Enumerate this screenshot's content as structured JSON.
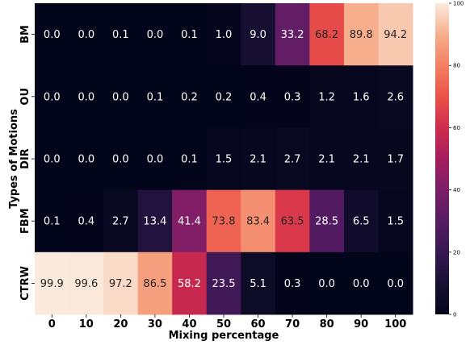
{
  "chart_data": {
    "type": "heatmap",
    "xlabel": "Mixing percentage",
    "ylabel": "Types of Motions",
    "x_categories": [
      "0",
      "10",
      "20",
      "30",
      "40",
      "50",
      "60",
      "70",
      "80",
      "90",
      "100"
    ],
    "y_categories": [
      "BM",
      "OU",
      "DIR",
      "FBM",
      "CTRW"
    ],
    "values": [
      [
        0.0,
        0.0,
        0.1,
        0.0,
        0.1,
        1.0,
        9.0,
        33.2,
        68.2,
        89.8,
        94.2
      ],
      [
        0.0,
        0.0,
        0.0,
        0.1,
        0.2,
        0.2,
        0.4,
        0.3,
        1.2,
        1.6,
        2.6
      ],
      [
        0.0,
        0.0,
        0.0,
        0.0,
        0.1,
        1.5,
        2.1,
        2.7,
        2.1,
        2.1,
        1.7
      ],
      [
        0.1,
        0.4,
        2.7,
        13.4,
        41.4,
        73.8,
        83.4,
        63.5,
        28.5,
        6.5,
        1.5
      ],
      [
        99.9,
        99.6,
        97.2,
        86.5,
        58.2,
        23.5,
        5.1,
        0.3,
        0.0,
        0.0,
        0.0
      ]
    ],
    "colorbar": {
      "range": [
        0,
        100
      ],
      "ticks": [
        "0",
        "20",
        "40",
        "60",
        "80",
        "100"
      ],
      "colormap": "rocket"
    },
    "grid": false
  }
}
